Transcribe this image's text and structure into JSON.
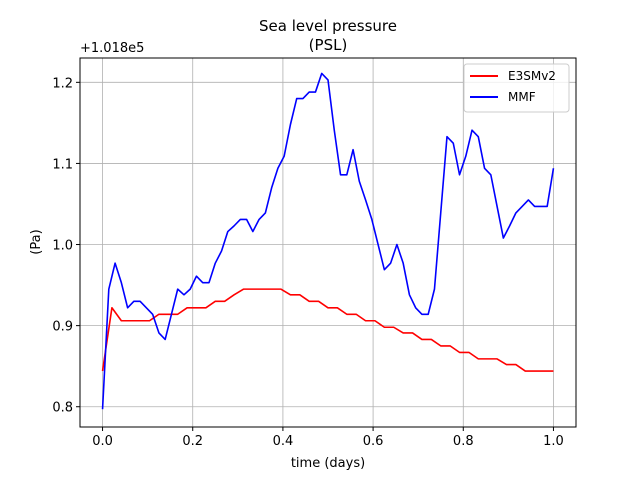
{
  "chart_data": {
    "type": "line",
    "title": "Sea level pressure",
    "subtitle": "(PSL)",
    "xlabel": "time (days)",
    "ylabel": "(Pa)",
    "y_offset_label": "+1.018e5",
    "xlim": [
      -0.05,
      1.05
    ],
    "ylim": [
      0.775,
      1.23
    ],
    "x_ticks": [
      0.0,
      0.2,
      0.4,
      0.6,
      0.8,
      1.0
    ],
    "x_tick_labels": [
      "0.0",
      "0.2",
      "0.4",
      "0.6",
      "0.8",
      "1.0"
    ],
    "y_ticks": [
      0.8,
      0.9,
      1.0,
      1.1,
      1.2
    ],
    "y_tick_labels": [
      "0.8",
      "0.9",
      "1.0",
      "1.1",
      "1.2"
    ],
    "grid": true,
    "legend_position": "top-right",
    "series": [
      {
        "name": "E3SMv2",
        "color": "#ff0000",
        "x": [
          0.0,
          0.0208,
          0.0417,
          0.0625,
          0.0833,
          0.1042,
          0.125,
          0.1458,
          0.1667,
          0.1875,
          0.2083,
          0.2292,
          0.25,
          0.2708,
          0.2917,
          0.3125,
          0.3333,
          0.3542,
          0.375,
          0.3958,
          0.4167,
          0.4375,
          0.4583,
          0.4792,
          0.5,
          0.5208,
          0.5417,
          0.5625,
          0.5833,
          0.6042,
          0.625,
          0.6458,
          0.6667,
          0.6875,
          0.7083,
          0.7292,
          0.75,
          0.7708,
          0.7917,
          0.8125,
          0.8333,
          0.8542,
          0.875,
          0.8958,
          0.9167,
          0.9375,
          0.9583,
          0.9792,
          1.0
        ],
        "y": [
          0.844,
          0.922,
          0.906,
          0.906,
          0.906,
          0.906,
          0.914,
          0.914,
          0.914,
          0.922,
          0.922,
          0.922,
          0.93,
          0.93,
          0.938,
          0.945,
          0.945,
          0.945,
          0.945,
          0.945,
          0.938,
          0.938,
          0.93,
          0.93,
          0.922,
          0.922,
          0.914,
          0.914,
          0.906,
          0.906,
          0.898,
          0.898,
          0.891,
          0.891,
          0.883,
          0.883,
          0.875,
          0.875,
          0.867,
          0.867,
          0.859,
          0.859,
          0.859,
          0.852,
          0.852,
          0.844,
          0.844,
          0.844,
          0.844
        ]
      },
      {
        "name": "MMF",
        "color": "#0000ff",
        "x": [
          0.0,
          0.0139,
          0.0278,
          0.0417,
          0.0556,
          0.0694,
          0.0833,
          0.0972,
          0.1111,
          0.125,
          0.1389,
          0.1528,
          0.1667,
          0.1806,
          0.1944,
          0.2083,
          0.2222,
          0.2361,
          0.25,
          0.2639,
          0.2778,
          0.2917,
          0.3056,
          0.3194,
          0.3333,
          0.3472,
          0.3611,
          0.375,
          0.3889,
          0.4028,
          0.4167,
          0.4306,
          0.4444,
          0.4583,
          0.4722,
          0.4861,
          0.5,
          0.5139,
          0.5278,
          0.5417,
          0.5556,
          0.5694,
          0.5833,
          0.5972,
          0.6111,
          0.625,
          0.6389,
          0.6528,
          0.6667,
          0.6806,
          0.6944,
          0.7083,
          0.7222,
          0.7361,
          0.75,
          0.7639,
          0.7778,
          0.7917,
          0.8056,
          0.8194,
          0.8333,
          0.8472,
          0.8611,
          0.875,
          0.8889,
          0.9028,
          0.9167,
          0.9306,
          0.9444,
          0.9583,
          0.9722,
          0.9861,
          1.0
        ],
        "y": [
          0.797,
          0.945,
          0.977,
          0.953,
          0.922,
          0.93,
          0.93,
          0.922,
          0.914,
          0.891,
          0.883,
          0.914,
          0.945,
          0.938,
          0.945,
          0.961,
          0.953,
          0.953,
          0.977,
          0.992,
          1.016,
          1.023,
          1.031,
          1.031,
          1.016,
          1.031,
          1.039,
          1.07,
          1.094,
          1.109,
          1.148,
          1.18,
          1.18,
          1.188,
          1.188,
          1.211,
          1.203,
          1.141,
          1.086,
          1.086,
          1.117,
          1.078,
          1.055,
          1.031,
          1.0,
          0.969,
          0.977,
          1.0,
          0.977,
          0.938,
          0.922,
          0.914,
          0.914,
          0.945,
          1.039,
          1.133,
          1.125,
          1.086,
          1.109,
          1.141,
          1.133,
          1.094,
          1.086,
          1.047,
          1.008,
          1.023,
          1.039,
          1.047,
          1.055,
          1.047,
          1.047,
          1.047,
          1.094
        ]
      }
    ]
  }
}
